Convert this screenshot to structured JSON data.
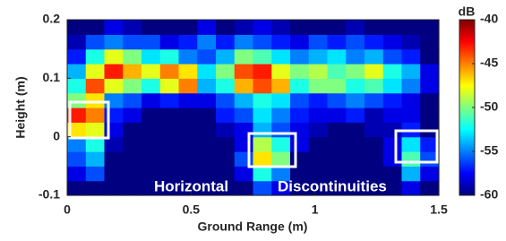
{
  "chart_data": {
    "type": "heatmap",
    "xlabel": "Ground Range (m)",
    "ylabel": "Height (m)",
    "x": [
      0.0375,
      0.1125,
      0.1875,
      0.2625,
      0.3375,
      0.4125,
      0.4875,
      0.5625,
      0.6375,
      0.7125,
      0.7875,
      0.8625,
      0.9375,
      1.0125,
      1.0875,
      1.1625,
      1.2375,
      1.3125,
      1.3875,
      1.4625
    ],
    "y": [
      -0.0875,
      -0.0625,
      -0.0375,
      -0.0125,
      0.0125,
      0.0375,
      0.0625,
      0.0875,
      0.1125,
      0.1375,
      0.1625,
      0.1875
    ],
    "z": [
      [
        -60,
        -60,
        -60,
        -60,
        -60,
        -60,
        -60,
        -60,
        -60,
        -60,
        -56,
        -58,
        -60,
        -60,
        -60,
        -60,
        -60,
        -60,
        -58,
        -60
      ],
      [
        -58,
        -56,
        -60,
        -60,
        -60,
        -60,
        -60,
        -60,
        -60,
        -58,
        -52,
        -55,
        -60,
        -60,
        -60,
        -60,
        -60,
        -60,
        -54,
        -58
      ],
      [
        -56,
        -54,
        -60,
        -60,
        -60,
        -60,
        -60,
        -60,
        -60,
        -56,
        -47,
        -50,
        -60,
        -60,
        -60,
        -60,
        -60,
        -58,
        -51,
        -56
      ],
      [
        -55,
        -52,
        -59,
        -60,
        -60,
        -60,
        -60,
        -60,
        -60,
        -58,
        -49,
        -52,
        -58,
        -60,
        -60,
        -60,
        -60,
        -58,
        -53,
        -57
      ],
      [
        -47,
        -48,
        -58,
        -60,
        -60,
        -60,
        -60,
        -60,
        -59,
        -58,
        -54,
        -56,
        -58,
        -59,
        -60,
        -60,
        -59,
        -59,
        -57,
        -60
      ],
      [
        -43,
        -45,
        -57,
        -58,
        -60,
        -60,
        -60,
        -60,
        -57,
        -56,
        -53,
        -55,
        -57,
        -58,
        -58,
        -57,
        -59,
        -58,
        -58,
        -60
      ],
      [
        -50,
        -47,
        -55,
        -56,
        -58,
        -57,
        -58,
        -58,
        -56,
        -54,
        -52,
        -53,
        -56,
        -57,
        -56,
        -55,
        -56,
        -57,
        -58,
        -60
      ],
      [
        -52,
        -44,
        -48,
        -50,
        -52,
        -48,
        -45,
        -54,
        -52,
        -46,
        -44,
        -46,
        -52,
        -50,
        -50,
        -52,
        -51,
        -53,
        -55,
        -58
      ],
      [
        -54,
        -48,
        -43,
        -46,
        -48,
        -45,
        -47,
        -53,
        -50,
        -44,
        -43,
        -48,
        -50,
        -49,
        -51,
        -50,
        -48,
        -52,
        -54,
        -58
      ],
      [
        -57,
        -52,
        -48,
        -50,
        -53,
        -52,
        -55,
        -56,
        -54,
        -50,
        -51,
        -53,
        -55,
        -54,
        -53,
        -55,
        -54,
        -56,
        -57,
        -60
      ],
      [
        -59,
        -56,
        -55,
        -56,
        -56,
        -58,
        -57,
        -55,
        -57,
        -55,
        -56,
        -57,
        -58,
        -56,
        -57,
        -56,
        -57,
        -58,
        -59,
        -60
      ],
      [
        -60,
        -60,
        -58,
        -59,
        -60,
        -60,
        -60,
        -58,
        -60,
        -59,
        -58,
        -59,
        -60,
        -60,
        -60,
        -59,
        -60,
        -60,
        -60,
        -60
      ]
    ],
    "xlim": [
      0,
      1.5
    ],
    "xticks": [
      0,
      0.5,
      1,
      1.5
    ],
    "ylim": [
      -0.1,
      0.2
    ],
    "yticks": [
      -0.1,
      0,
      0.1,
      0.2
    ],
    "colormap": "jet",
    "clim": [
      -60,
      -40
    ],
    "cticks": [
      -40,
      -45,
      -50,
      -55,
      -60
    ],
    "colorbar_label": "dB",
    "annotations": [
      "Horizontal",
      "Discontinuities"
    ]
  }
}
